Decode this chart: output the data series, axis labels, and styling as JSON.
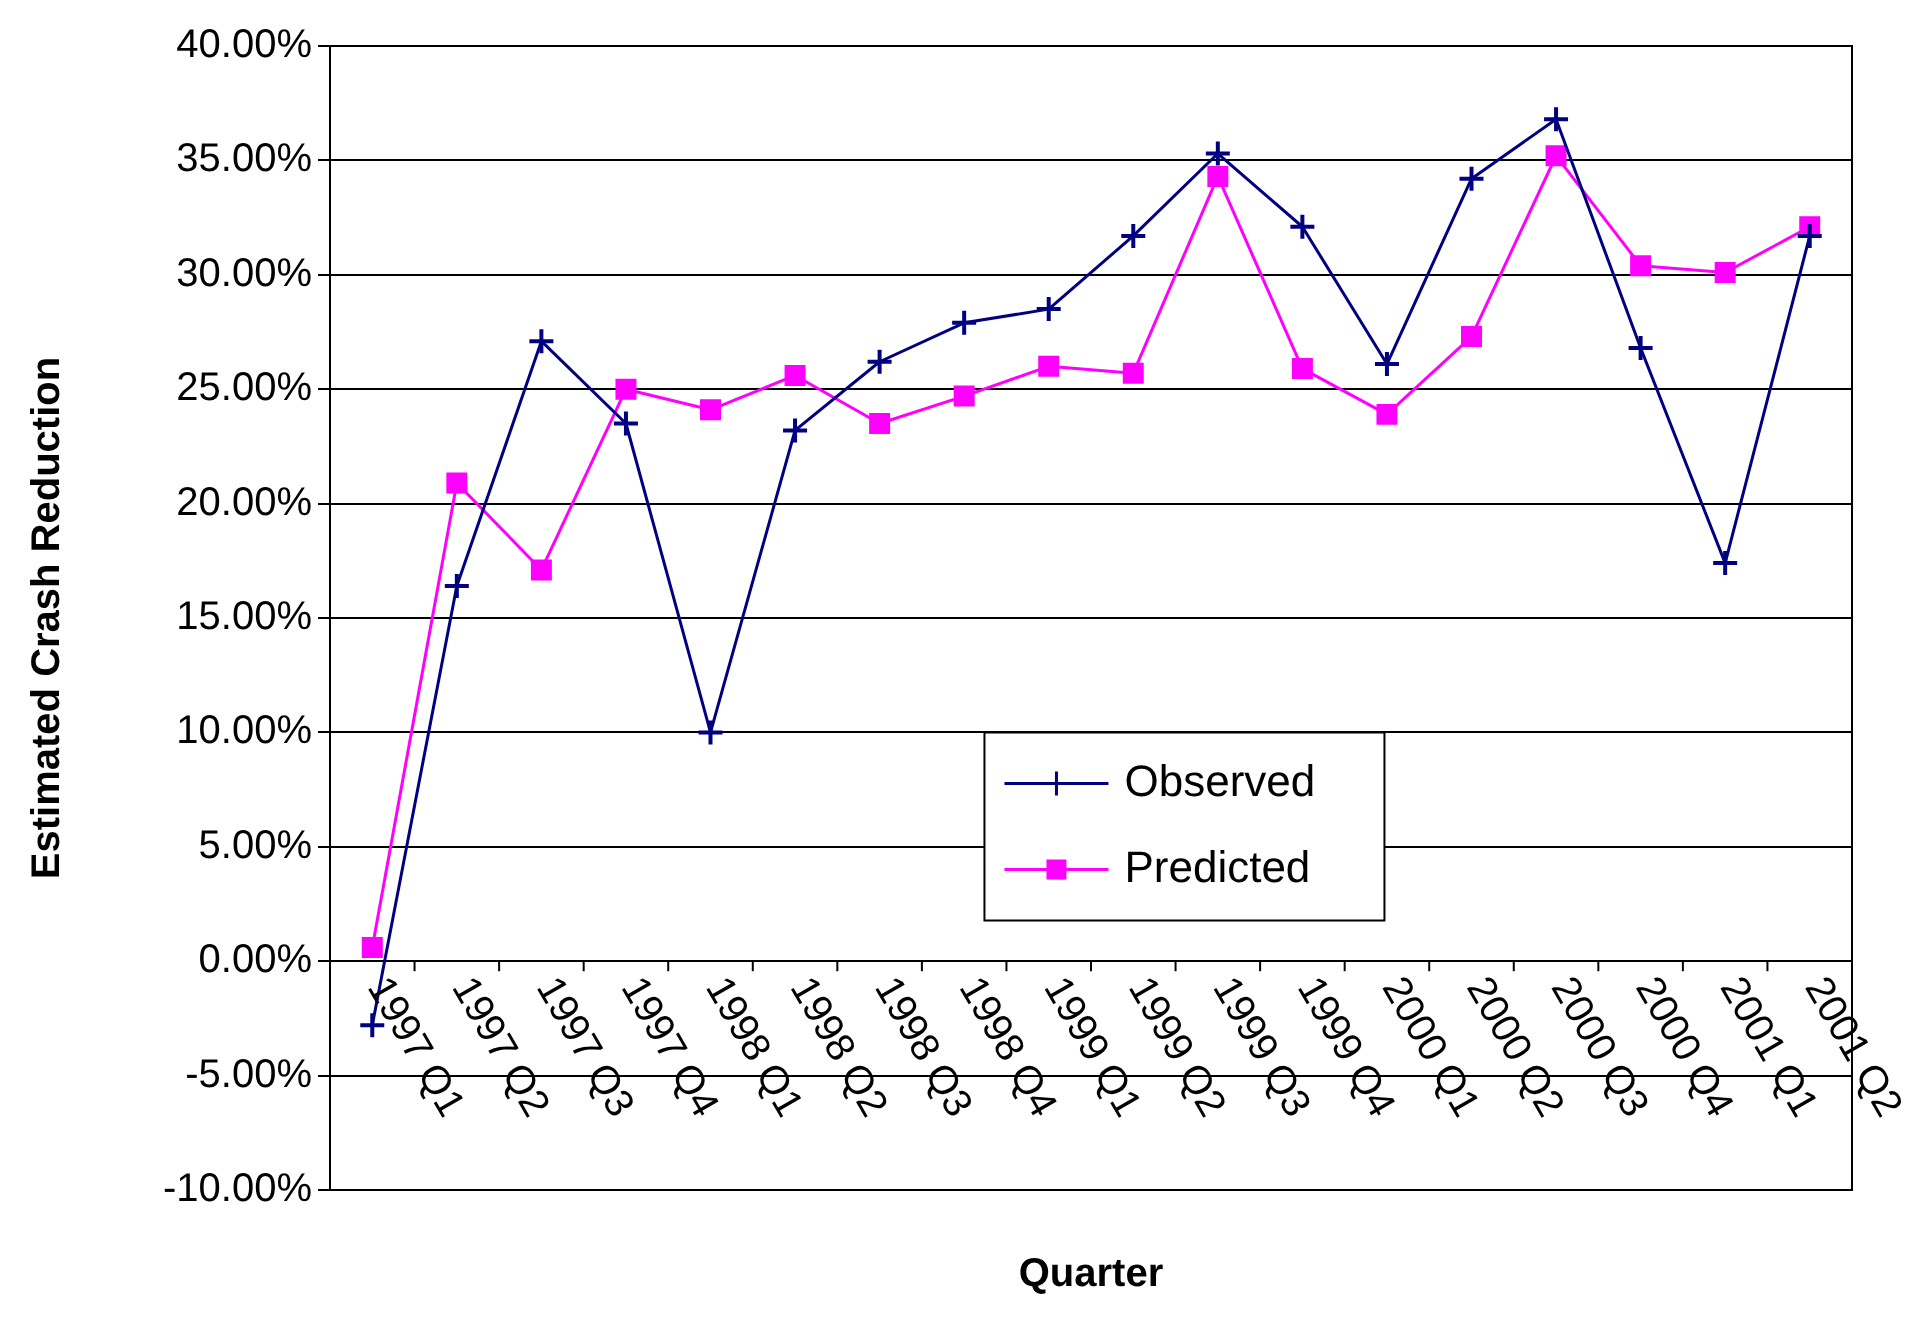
{
  "chart_data": {
    "type": "line",
    "xlabel": "Quarter",
    "ylabel": "Estimated Crash Reduction",
    "categories": [
      "1997 Q1",
      "1997 Q2",
      "1997 Q3",
      "1997 Q4",
      "1998 Q1",
      "1998 Q2",
      "1998 Q3",
      "1998 Q4",
      "1999 Q1",
      "1999 Q2",
      "1999 Q3",
      "1999 Q4",
      "2000 Q1",
      "2000 Q2",
      "2000 Q3",
      "2000 Q4",
      "2001 Q1",
      "2001 Q2"
    ],
    "series": [
      {
        "name": "Observed",
        "color": "#000080",
        "marker": "cross",
        "values": [
          -2.8,
          16.4,
          27.1,
          23.5,
          10.0,
          23.2,
          26.2,
          27.9,
          28.5,
          31.7,
          35.3,
          32.1,
          26.1,
          34.2,
          36.8,
          26.8,
          17.4,
          31.7
        ]
      },
      {
        "name": "Predicted",
        "color": "#ff00ff",
        "marker": "square",
        "values": [
          0.6,
          20.9,
          17.1,
          25.0,
          24.1,
          25.6,
          23.5,
          24.7,
          26.0,
          25.7,
          34.3,
          25.9,
          23.9,
          27.3,
          35.2,
          30.4,
          30.1,
          32.1
        ]
      }
    ],
    "ylim": [
      -10,
      40
    ],
    "yticks": [
      {
        "value": -10,
        "label": "-10.00%"
      },
      {
        "value": -5,
        "label": "-5.00%"
      },
      {
        "value": 0,
        "label": "0.00%"
      },
      {
        "value": 5,
        "label": "5.00%"
      },
      {
        "value": 10,
        "label": "10.00%"
      },
      {
        "value": 15,
        "label": "15.00%"
      },
      {
        "value": 20,
        "label": "20.00%"
      },
      {
        "value": 25,
        "label": "25.00%"
      },
      {
        "value": 30,
        "label": "30.00%"
      },
      {
        "value": 35,
        "label": "35.00%"
      },
      {
        "value": 40,
        "label": "40.00%"
      }
    ],
    "grid": "y",
    "legend": "bottom"
  }
}
